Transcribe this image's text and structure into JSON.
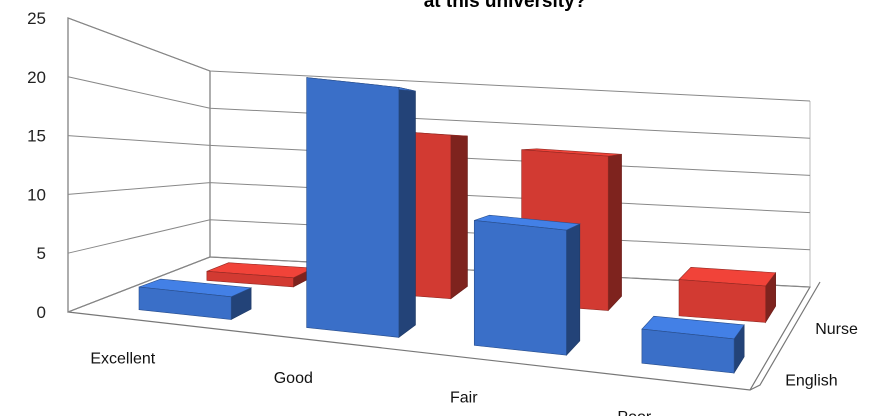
{
  "chart_data": {
    "type": "bar",
    "style": "3d-clustered-columns",
    "title": "at this university?",
    "categories": [
      "Excellent",
      "Good",
      "Fair",
      "Poor"
    ],
    "series": [
      {
        "name": "English",
        "values": [
          2,
          22,
          11,
          3
        ]
      },
      {
        "name": "Nurse",
        "values": [
          1,
          18,
          17,
          4
        ]
      }
    ],
    "ylim": [
      0,
      25
    ],
    "yticks": [
      "0",
      "5",
      "10",
      "15",
      "20",
      "25"
    ],
    "grid": true,
    "colors": {
      "English": "#3a6fc8",
      "Nurse": "#d23a32"
    }
  }
}
